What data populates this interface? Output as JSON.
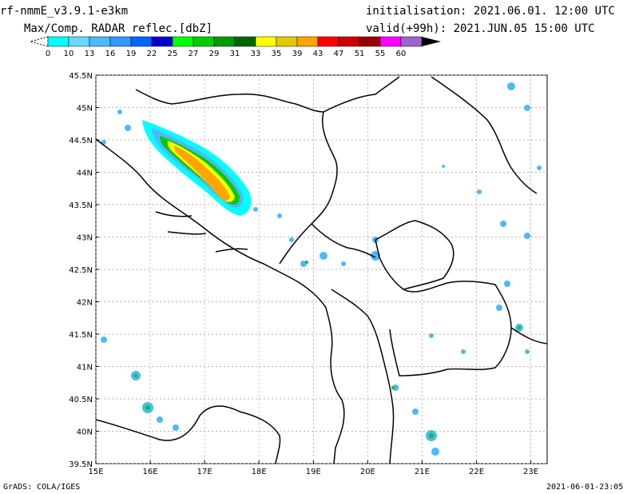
{
  "header": {
    "model": "rf-nmmE_v3.9.1-e3km",
    "field": "Max/Comp. RADAR reflec.[dbZ]",
    "init": "initialisation: 2021.06.01. 12:00 UTC",
    "valid": "valid(+99h): 2021.JUN.05 15:00 UTC"
  },
  "legend": {
    "labels": [
      "0",
      "10",
      "13",
      "16",
      "19",
      "22",
      "25",
      "27",
      "29",
      "31",
      "33",
      "35",
      "39",
      "43",
      "47",
      "51",
      "55",
      "60"
    ],
    "colors": [
      "#00ffff",
      "#66d9ff",
      "#4db8ff",
      "#3399ff",
      "#0066ff",
      "#0000cc",
      "#00ff00",
      "#00cc00",
      "#009900",
      "#006600",
      "#ffff00",
      "#e6c800",
      "#ffa500",
      "#ff0000",
      "#cc0000",
      "#990000",
      "#ff00ff",
      "#9966cc",
      "#000000"
    ]
  },
  "map": {
    "lon_labels": [
      "15E",
      "16E",
      "17E",
      "18E",
      "19E",
      "20E",
      "21E",
      "22E",
      "23E"
    ],
    "lat_labels": [
      "45.5N",
      "45N",
      "44.5N",
      "44N",
      "43.5N",
      "43N",
      "42.5N",
      "42N",
      "41.5N",
      "41N",
      "40.5N",
      "40N",
      "39.5N"
    ],
    "lon_range": [
      15,
      23.3
    ],
    "lat_range": [
      39.5,
      45.5
    ]
  },
  "footer": {
    "software": "GrADS: COLA/IGES",
    "timestamp": "2021-06-01-23:05"
  }
}
